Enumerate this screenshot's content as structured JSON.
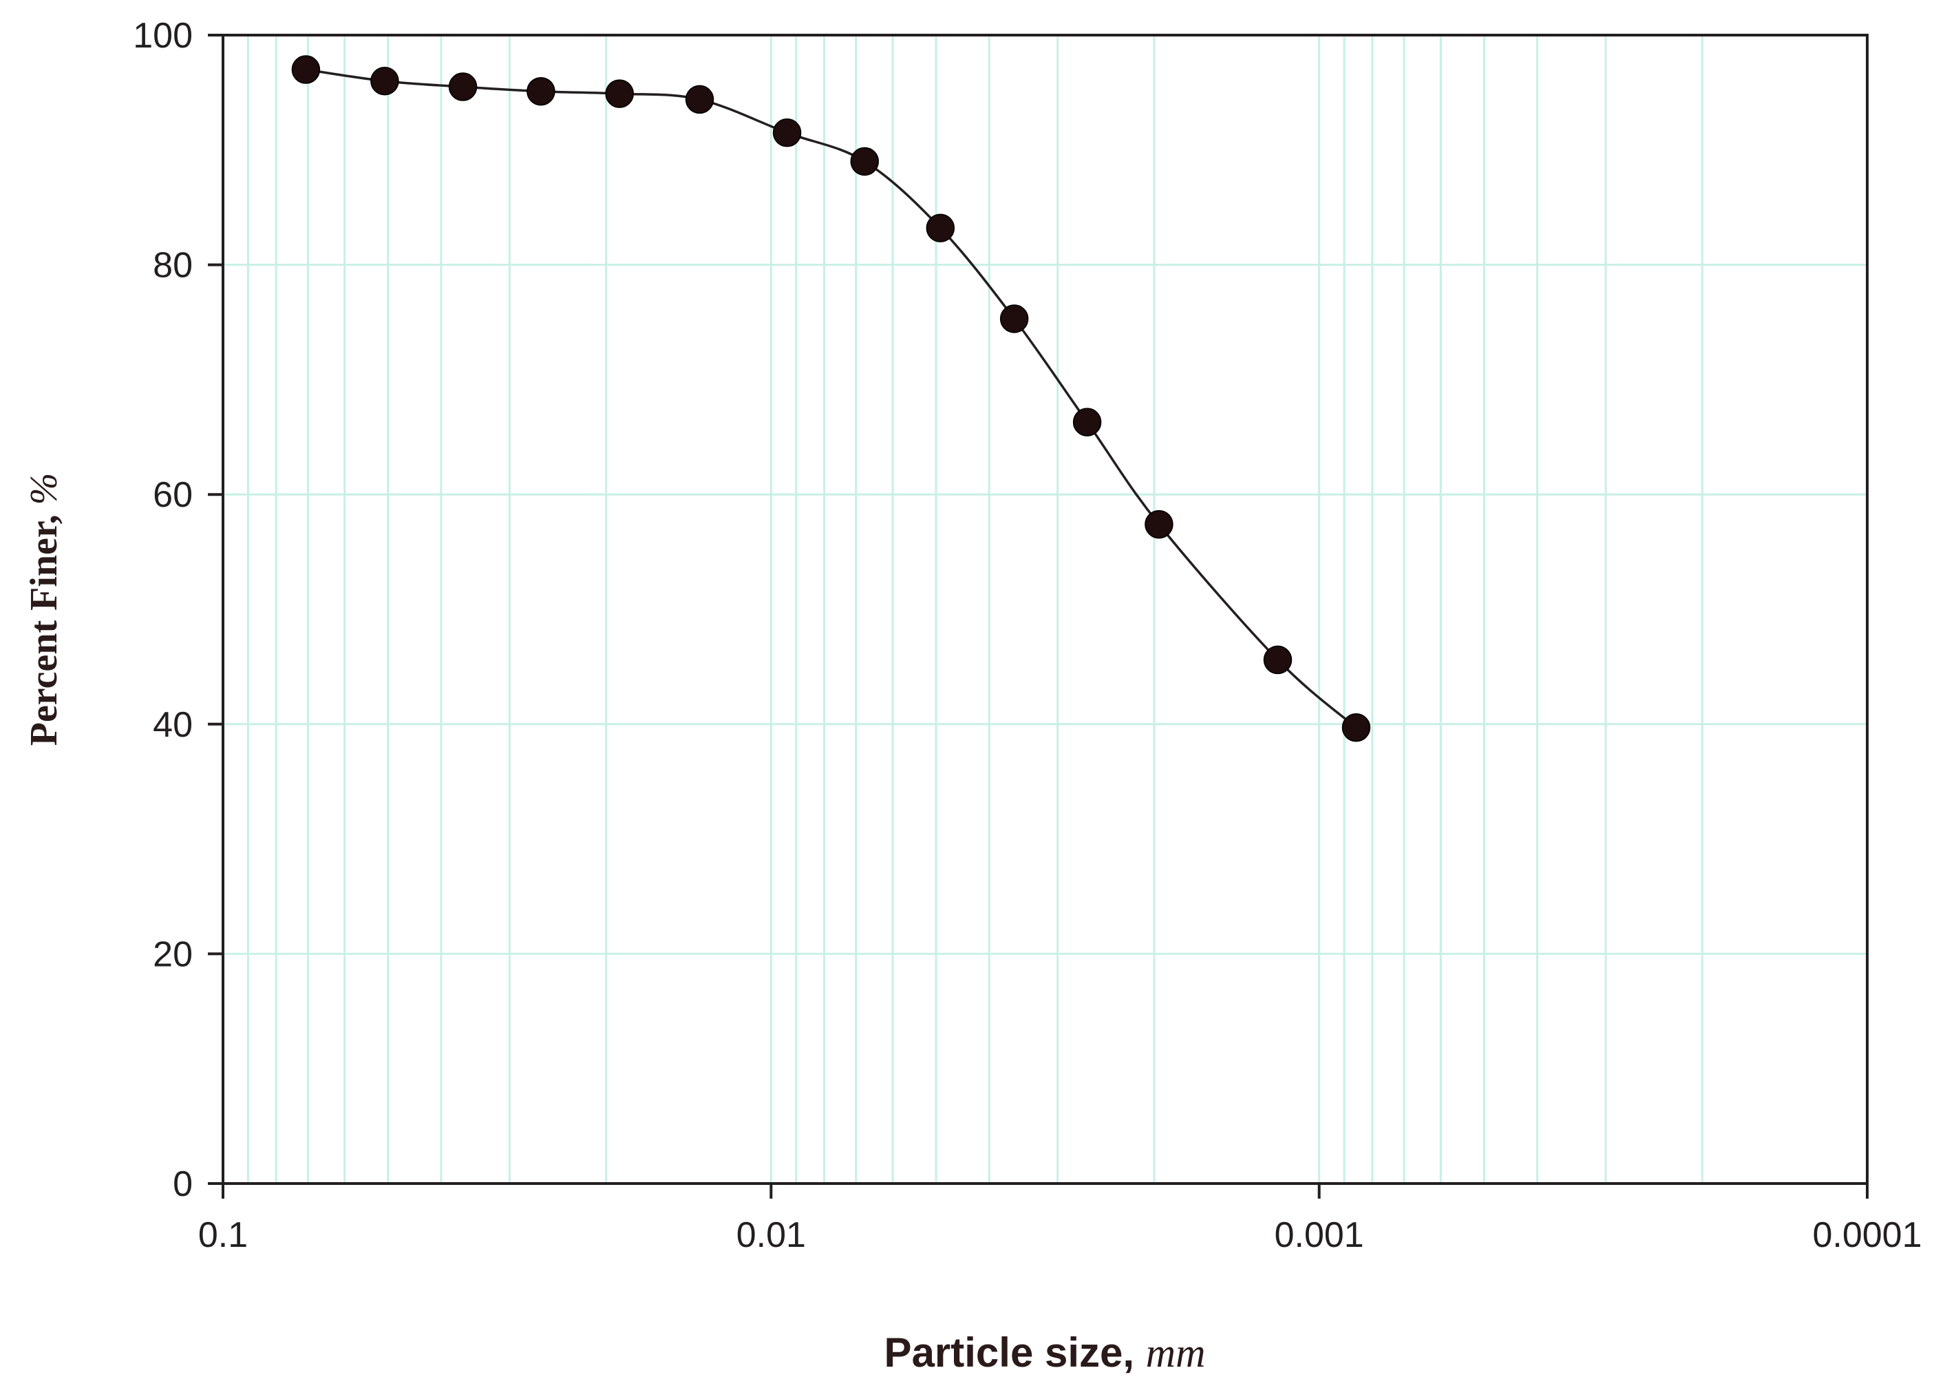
{
  "chart_data": {
    "type": "line",
    "title": "",
    "xlabel": "Particle size,",
    "xlabel_unit": "mm",
    "ylabel": "Percent Finer,",
    "ylabel_unit": "%",
    "x_scale": "log",
    "x_reversed": true,
    "xlim": [
      0.1,
      0.0001
    ],
    "ylim": [
      0,
      100
    ],
    "x_ticks": [
      {
        "value": 0.1,
        "label": "0.1"
      },
      {
        "value": 0.01,
        "label": "0.01"
      },
      {
        "value": 0.001,
        "label": "0.001"
      },
      {
        "value": 0.0001,
        "label": "0.0001"
      }
    ],
    "y_ticks": [
      {
        "value": 0,
        "label": "0"
      },
      {
        "value": 20,
        "label": "20"
      },
      {
        "value": 40,
        "label": "40"
      },
      {
        "value": 60,
        "label": "60"
      },
      {
        "value": 80,
        "label": "80"
      },
      {
        "value": 100,
        "label": "100"
      }
    ],
    "grid": true,
    "legend": "none",
    "colors": {
      "grid": "#c8f0e6",
      "axis": "#231f20",
      "line": "#231f20",
      "marker": "#1f0c0c"
    },
    "series": [
      {
        "marker": "circle",
        "x": [
          0.0706,
          0.0507,
          0.0365,
          0.0263,
          0.0189,
          0.0135,
          0.00935,
          0.00675,
          0.00491,
          0.0036,
          0.00265,
          0.00196,
          0.00119,
          0.000856
        ],
        "y": [
          97.0,
          96.0,
          95.5,
          95.1,
          94.9,
          94.4,
          91.5,
          89.0,
          83.2,
          75.3,
          66.3,
          57.4,
          45.6,
          39.7
        ]
      }
    ]
  }
}
